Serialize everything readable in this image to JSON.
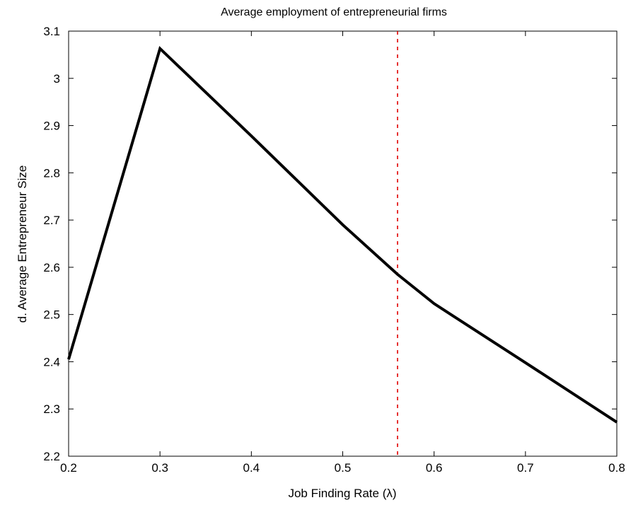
{
  "chart_data": {
    "type": "line",
    "title": "Average employment of entrepreneurial firms",
    "xlabel": "Job Finding Rate (λ)",
    "ylabel": "d. Average Entrepreneur Size",
    "xlim": [
      0.2,
      0.8
    ],
    "ylim": [
      2.2,
      3.1
    ],
    "xticks": [
      "0.2",
      "0.3",
      "0.4",
      "0.5",
      "0.6",
      "0.7",
      "0.8"
    ],
    "yticks": [
      "2.2",
      "2.3",
      "2.4",
      "2.5",
      "2.6",
      "2.7",
      "2.8",
      "2.9",
      "3",
      "3.1"
    ],
    "grid": false,
    "series": [
      {
        "x": [
          0.2,
          0.3,
          0.4,
          0.5,
          0.56,
          0.6,
          0.7,
          0.8
        ],
        "y": [
          2.405,
          3.063,
          2.878,
          2.69,
          2.585,
          2.523,
          2.398,
          2.272
        ],
        "color": "#000000",
        "style": "solid"
      }
    ],
    "reference_lines": [
      {
        "orientation": "vertical",
        "x": 0.56,
        "color": "#e00000",
        "style": "dotted"
      }
    ]
  }
}
